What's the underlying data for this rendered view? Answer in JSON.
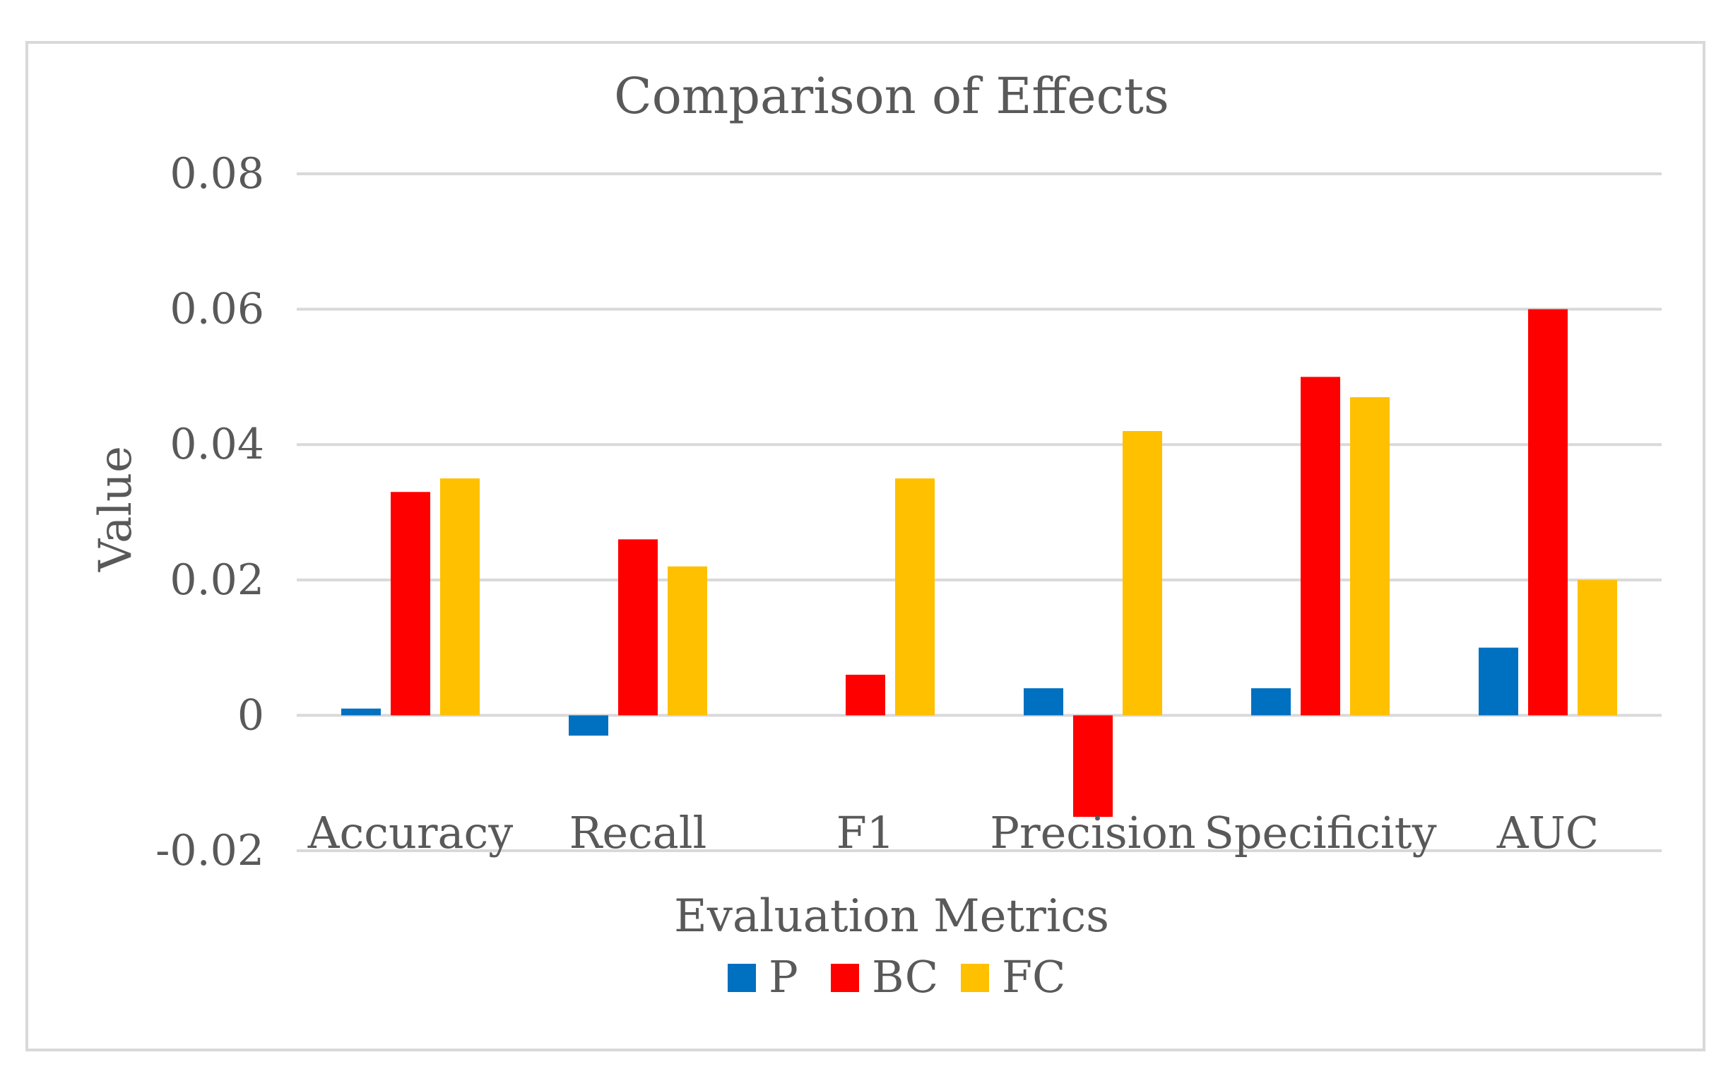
{
  "chart_data": {
    "type": "bar",
    "title": "Comparison of Effects",
    "xlabel": "Evaluation Metrics",
    "ylabel": "Value",
    "categories": [
      "Accuracy",
      "Recall",
      "F1",
      "Precision",
      "Specificity",
      "AUC"
    ],
    "series": [
      {
        "name": "P",
        "color": "#0070c0",
        "values": [
          0.001,
          -0.003,
          0.0,
          0.004,
          0.004,
          0.01
        ]
      },
      {
        "name": "BC",
        "color": "#ff0000",
        "values": [
          0.033,
          0.026,
          0.006,
          -0.015,
          0.05,
          0.06
        ]
      },
      {
        "name": "FC",
        "color": "#ffc000",
        "values": [
          0.035,
          0.022,
          0.035,
          0.042,
          0.047,
          0.02
        ]
      }
    ],
    "ylim": [
      -0.02,
      0.08
    ],
    "yticks": [
      -0.02,
      0,
      0.02,
      0.04,
      0.06,
      0.08
    ],
    "ytick_labels": [
      "-0.02",
      "0",
      "0.02",
      "0.04",
      "0.06",
      "0.08"
    ],
    "grid": true,
    "gridline_color": "#d9d9d9",
    "text_color": "#595959",
    "legend_position": "bottom"
  }
}
